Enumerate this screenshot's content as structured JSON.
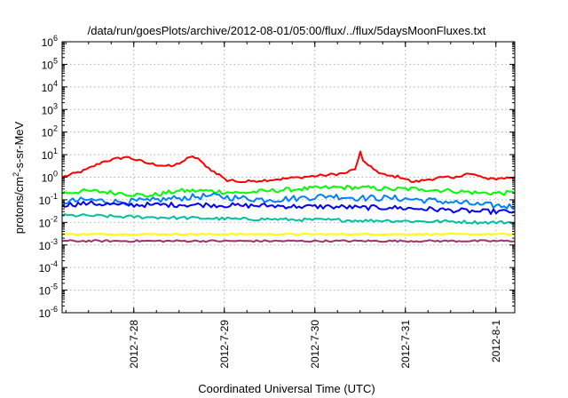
{
  "chart_data": {
    "type": "line",
    "title": "/data/run/goesPlots/archive/2012-08-01/05:00/flux/../flux/5daysMoonFluxes.txt",
    "xlabel": "Coordinated Universal Time (UTC)",
    "ylabel": {
      "prefix": "protons/cm",
      "superscript": "2",
      "suffix": "-s-sr-MeV"
    },
    "x_unit": "UTC date",
    "xlim": [
      "2012-07-27 05:00",
      "2012-08-01 05:00"
    ],
    "ylim": [
      1e-06,
      1000000.0
    ],
    "y_scale": "log",
    "grid": true,
    "x_ticks": [
      {
        "label": "2012-7-28",
        "value": "2012-07-28 00:00"
      },
      {
        "label": "2012-7-29",
        "value": "2012-07-29 00:00"
      },
      {
        "label": "2012-7-30",
        "value": "2012-07-30 00:00"
      },
      {
        "label": "2012-7-31",
        "value": "2012-07-31 00:00"
      },
      {
        "label": "2012-8-1",
        "value": "2012-08-01 00:00"
      }
    ],
    "y_ticks": [
      {
        "value": 1e-06,
        "base": "10",
        "exp": "-6"
      },
      {
        "value": 1e-05,
        "base": "10",
        "exp": "-5"
      },
      {
        "value": 0.0001,
        "base": "10",
        "exp": "-4"
      },
      {
        "value": 0.001,
        "base": "10",
        "exp": "-3"
      },
      {
        "value": 0.01,
        "base": "10",
        "exp": "-2"
      },
      {
        "value": 0.1,
        "base": "10",
        "exp": "-1"
      },
      {
        "value": 1,
        "base": "10",
        "exp": "0"
      },
      {
        "value": 10,
        "base": "10",
        "exp": "1"
      },
      {
        "value": 100,
        "base": "10",
        "exp": "2"
      },
      {
        "value": 1000,
        "base": "10",
        "exp": "3"
      },
      {
        "value": 10000,
        "base": "10",
        "exp": "4"
      },
      {
        "value": 100000,
        "base": "10",
        "exp": "5"
      },
      {
        "value": 1000000,
        "base": "10",
        "exp": "6"
      }
    ],
    "series": [
      {
        "color": "#ff0000",
        "x": [
          "2012-07-27 05:00",
          "2012-07-27 11:00",
          "2012-07-27 16:00",
          "2012-07-27 22:00",
          "2012-07-28 04:00",
          "2012-07-28 10:00",
          "2012-07-28 13:00",
          "2012-07-28 15:00",
          "2012-07-28 17:00",
          "2012-07-28 19:00",
          "2012-07-28 23:00",
          "2012-07-29 00:00",
          "2012-07-29 01:00",
          "2012-07-29 02:00",
          "2012-07-29 04:00",
          "2012-07-29 08:00",
          "2012-07-29 14:00",
          "2012-07-29 20:00",
          "2012-07-30 02:00",
          "2012-07-30 08:00",
          "2012-07-30 11:00",
          "2012-07-30 12:00",
          "2012-07-30 13:00",
          "2012-07-30 15:00",
          "2012-07-30 17:00",
          "2012-07-30 19:00",
          "2012-07-30 23:00",
          "2012-07-31 02:00",
          "2012-07-31 06:00",
          "2012-07-31 10:00",
          "2012-07-31 13:00",
          "2012-07-31 16:00",
          "2012-07-31 19:00",
          "2012-07-31 22:00",
          "2012-08-01 01:00",
          "2012-08-01 05:00"
        ],
        "y": [
          1.0,
          2.0,
          5.0,
          8.0,
          4.0,
          3.0,
          5.0,
          8.0,
          7.0,
          3.0,
          1.2,
          0.9,
          0.6,
          0.8,
          0.6,
          0.7,
          0.8,
          1.0,
          1.2,
          1.5,
          2.5,
          15.0,
          4.0,
          3.0,
          1.5,
          1.2,
          1.0,
          0.6,
          0.8,
          1.0,
          0.9,
          1.5,
          1.2,
          0.8,
          0.9,
          1.0
        ]
      },
      {
        "color": "#00ff00",
        "x": [
          "2012-07-27 05:00",
          "2012-07-27 12:00",
          "2012-07-27 20:00",
          "2012-07-28 04:00",
          "2012-07-28 12:00",
          "2012-07-28 20:00",
          "2012-07-29 04:00",
          "2012-07-29 12:00",
          "2012-07-29 20:00",
          "2012-07-30 04:00",
          "2012-07-30 12:00",
          "2012-07-30 20:00",
          "2012-07-31 04:00",
          "2012-07-31 12:00",
          "2012-07-31 20:00",
          "2012-08-01 05:00"
        ],
        "y": [
          0.2,
          0.25,
          0.2,
          0.15,
          0.25,
          0.25,
          0.2,
          0.25,
          0.3,
          0.35,
          0.35,
          0.3,
          0.3,
          0.25,
          0.2,
          0.2
        ]
      },
      {
        "color": "#0080ff",
        "x": [
          "2012-07-27 05:00",
          "2012-07-27 12:00",
          "2012-07-27 20:00",
          "2012-07-28 04:00",
          "2012-07-28 12:00",
          "2012-07-28 20:00",
          "2012-07-29 04:00",
          "2012-07-29 12:00",
          "2012-07-29 20:00",
          "2012-07-30 04:00",
          "2012-07-30 12:00",
          "2012-07-30 20:00",
          "2012-07-31 04:00",
          "2012-07-31 12:00",
          "2012-07-31 20:00",
          "2012-08-01 05:00"
        ],
        "y": [
          0.08,
          0.1,
          0.08,
          0.09,
          0.12,
          0.15,
          0.12,
          0.1,
          0.12,
          0.15,
          0.12,
          0.12,
          0.1,
          0.08,
          0.06,
          0.05
        ]
      },
      {
        "color": "#0000ff",
        "x": [
          "2012-07-27 05:00",
          "2012-07-27 12:00",
          "2012-07-27 20:00",
          "2012-07-28 04:00",
          "2012-07-28 12:00",
          "2012-07-28 20:00",
          "2012-07-29 04:00",
          "2012-07-29 12:00",
          "2012-07-29 20:00",
          "2012-07-30 04:00",
          "2012-07-30 12:00",
          "2012-07-30 20:00",
          "2012-07-31 04:00",
          "2012-07-31 12:00",
          "2012-07-31 20:00",
          "2012-08-01 05:00"
        ],
        "y": [
          0.06,
          0.07,
          0.06,
          0.06,
          0.06,
          0.06,
          0.055,
          0.055,
          0.05,
          0.05,
          0.045,
          0.045,
          0.04,
          0.035,
          0.03,
          0.03
        ]
      },
      {
        "color": "#00c0a0",
        "x": [
          "2012-07-27 05:00",
          "2012-07-27 12:00",
          "2012-07-27 20:00",
          "2012-07-28 04:00",
          "2012-07-28 12:00",
          "2012-07-28 20:00",
          "2012-07-29 04:00",
          "2012-07-29 12:00",
          "2012-07-29 20:00",
          "2012-07-30 04:00",
          "2012-07-30 12:00",
          "2012-07-30 20:00",
          "2012-07-31 04:00",
          "2012-07-31 12:00",
          "2012-07-31 20:00",
          "2012-08-01 05:00"
        ],
        "y": [
          0.02,
          0.02,
          0.018,
          0.017,
          0.016,
          0.015,
          0.014,
          0.014,
          0.013,
          0.013,
          0.012,
          0.012,
          0.011,
          0.011,
          0.01,
          0.01
        ]
      },
      {
        "color": "#ffff00",
        "x": [
          "2012-07-27 05:00",
          "2012-07-28 05:00",
          "2012-07-29 05:00",
          "2012-07-30 05:00",
          "2012-07-31 05:00",
          "2012-08-01 05:00"
        ],
        "y": [
          0.003,
          0.003,
          0.003,
          0.003,
          0.003,
          0.003
        ]
      },
      {
        "color": "#a03070",
        "x": [
          "2012-07-27 05:00",
          "2012-07-28 05:00",
          "2012-07-29 05:00",
          "2012-07-30 05:00",
          "2012-07-31 05:00",
          "2012-08-01 05:00"
        ],
        "y": [
          0.0015,
          0.0015,
          0.0015,
          0.0015,
          0.0015,
          0.0015
        ]
      }
    ]
  }
}
